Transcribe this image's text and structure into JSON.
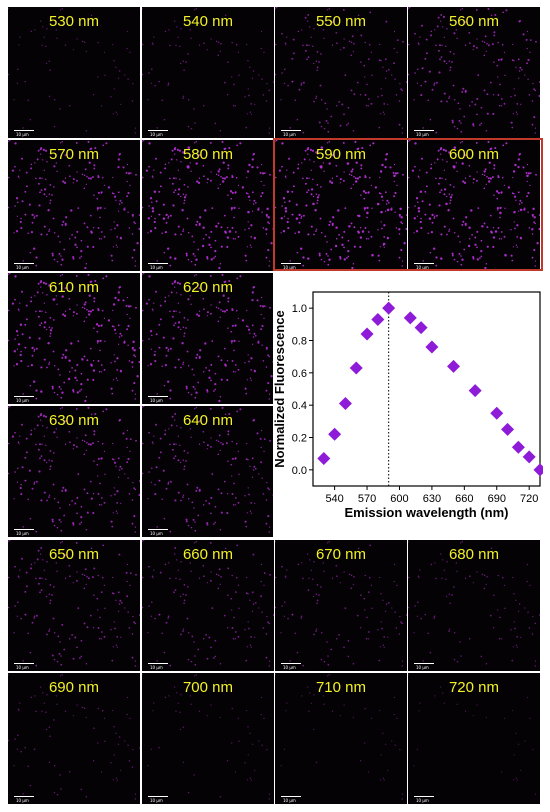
{
  "scale_label": "10 μm",
  "colors": {
    "marker": "#8e1bd8",
    "highlight": "#c0392b",
    "wavelength_text": "#f2f226",
    "dots": "#b52fd6"
  },
  "panels": [
    {
      "label": "530 nm",
      "brightness": 0.25
    },
    {
      "label": "540 nm",
      "brightness": 0.35
    },
    {
      "label": "550 nm",
      "brightness": 0.55
    },
    {
      "label": "560 nm",
      "brightness": 0.7
    },
    {
      "label": "570 nm",
      "brightness": 0.85
    },
    {
      "label": "580 nm",
      "brightness": 0.95
    },
    {
      "label": "590 nm",
      "brightness": 1.0
    },
    {
      "label": "600 nm",
      "brightness": 0.97
    },
    {
      "label": "610 nm",
      "brightness": 0.92
    },
    {
      "label": "620 nm",
      "brightness": 0.85
    },
    {
      "label": "630 nm",
      "brightness": 0.75
    },
    {
      "label": "640 nm",
      "brightness": 0.68
    },
    {
      "label": "650 nm",
      "brightness": 0.58
    },
    {
      "label": "660 nm",
      "brightness": 0.5
    },
    {
      "label": "670 nm",
      "brightness": 0.42
    },
    {
      "label": "680 nm",
      "brightness": 0.35
    },
    {
      "label": "690 nm",
      "brightness": 0.28
    },
    {
      "label": "700 nm",
      "brightness": 0.22
    },
    {
      "label": "710 nm",
      "brightness": 0.16
    },
    {
      "label": "720 nm",
      "brightness": 0.1
    }
  ],
  "chart_data": {
    "type": "scatter",
    "xlabel": "Emission wavelength (nm)",
    "ylabel": "Normalized Fluorescence",
    "xlim": [
      520,
      730
    ],
    "ylim": [
      -0.1,
      1.1
    ],
    "xticks": [
      540,
      570,
      600,
      630,
      660,
      690,
      720
    ],
    "yticks": [
      0.0,
      0.2,
      0.4,
      0.6,
      0.8,
      1.0
    ],
    "marker": "diamond",
    "reference_line": {
      "x": 590,
      "style": "dotted"
    },
    "series": [
      {
        "x": [
          530,
          540,
          550,
          560,
          570,
          580,
          590,
          610,
          620,
          630,
          650,
          670,
          690,
          700,
          710,
          720,
          730
        ],
        "y": [
          0.07,
          0.22,
          0.41,
          0.63,
          0.84,
          0.93,
          1.0,
          0.94,
          0.88,
          0.76,
          0.64,
          0.49,
          0.35,
          0.25,
          0.14,
          0.08,
          0.0
        ]
      }
    ]
  }
}
